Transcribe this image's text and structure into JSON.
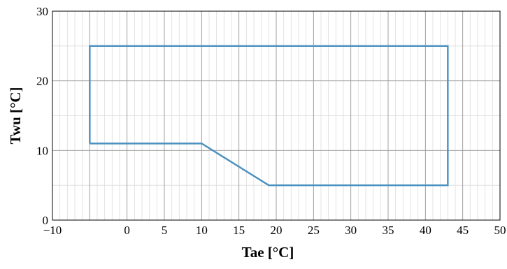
{
  "chart_data": {
    "type": "line",
    "xlabel": "Tae [°C]",
    "ylabel": "Twu [°C]",
    "xlim": [
      -10,
      50
    ],
    "ylim": [
      0,
      30
    ],
    "x_ticks": [
      "−10",
      "0",
      "5",
      "10",
      "15",
      "20",
      "25",
      "30",
      "35",
      "40",
      "45",
      "50"
    ],
    "x_tick_values": [
      -10,
      0,
      5,
      10,
      15,
      20,
      25,
      30,
      35,
      40,
      45,
      50
    ],
    "y_ticks": [
      "0",
      "10",
      "20",
      "30"
    ],
    "y_tick_values": [
      0,
      10,
      20,
      30
    ],
    "grid": true,
    "series": [
      {
        "color": "#4a90c0",
        "points": [
          [
            -5,
            11
          ],
          [
            -5,
            25
          ],
          [
            43,
            25
          ],
          [
            43,
            5
          ],
          [
            19,
            5
          ],
          [
            10,
            11
          ],
          [
            -5,
            11
          ]
        ]
      }
    ]
  }
}
